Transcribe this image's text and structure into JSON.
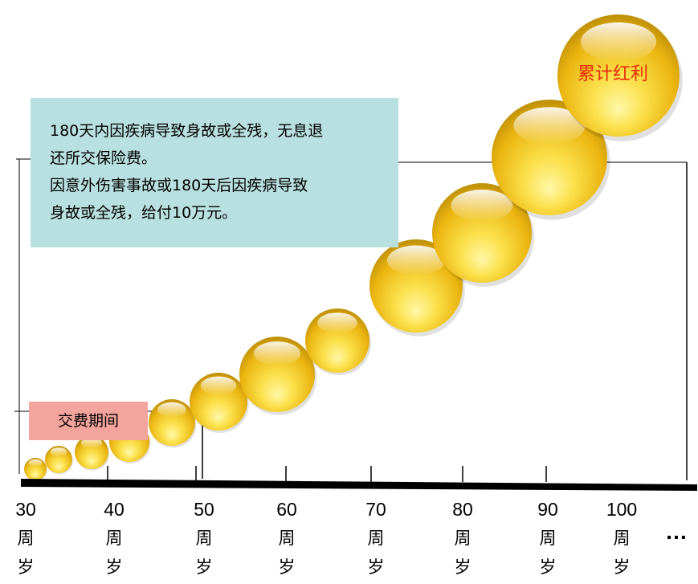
{
  "info_box": {
    "line1": "180天内因疾病导致身故或全残，无息退",
    "line2": "还所交保险费。",
    "line3": "因意外伤害事故或180天后因疾病导致",
    "line4": "身故或全残，给付10万元。"
  },
  "period_label": "交费期间",
  "bonus_label": "累计红利",
  "ages": [
    {
      "num": "30",
      "l1": "周",
      "l2": "岁"
    },
    {
      "num": "40",
      "l1": "周",
      "l2": "岁"
    },
    {
      "num": "50",
      "l1": "周",
      "l2": "岁"
    },
    {
      "num": "60",
      "l1": "周",
      "l2": "岁"
    },
    {
      "num": "70",
      "l1": "周",
      "l2": "岁"
    },
    {
      "num": "80",
      "l1": "周",
      "l2": "岁"
    },
    {
      "num": "90",
      "l1": "周",
      "l2": "岁"
    },
    {
      "num": "100",
      "l1": "周",
      "l2": "岁"
    }
  ],
  "ellipsis": "…",
  "colors": {
    "info_bg": "#b9e0e0",
    "period_bg": "#f3a49c",
    "bonus_text": "#e62b0a",
    "sphere_gold": "#f2c21b"
  }
}
